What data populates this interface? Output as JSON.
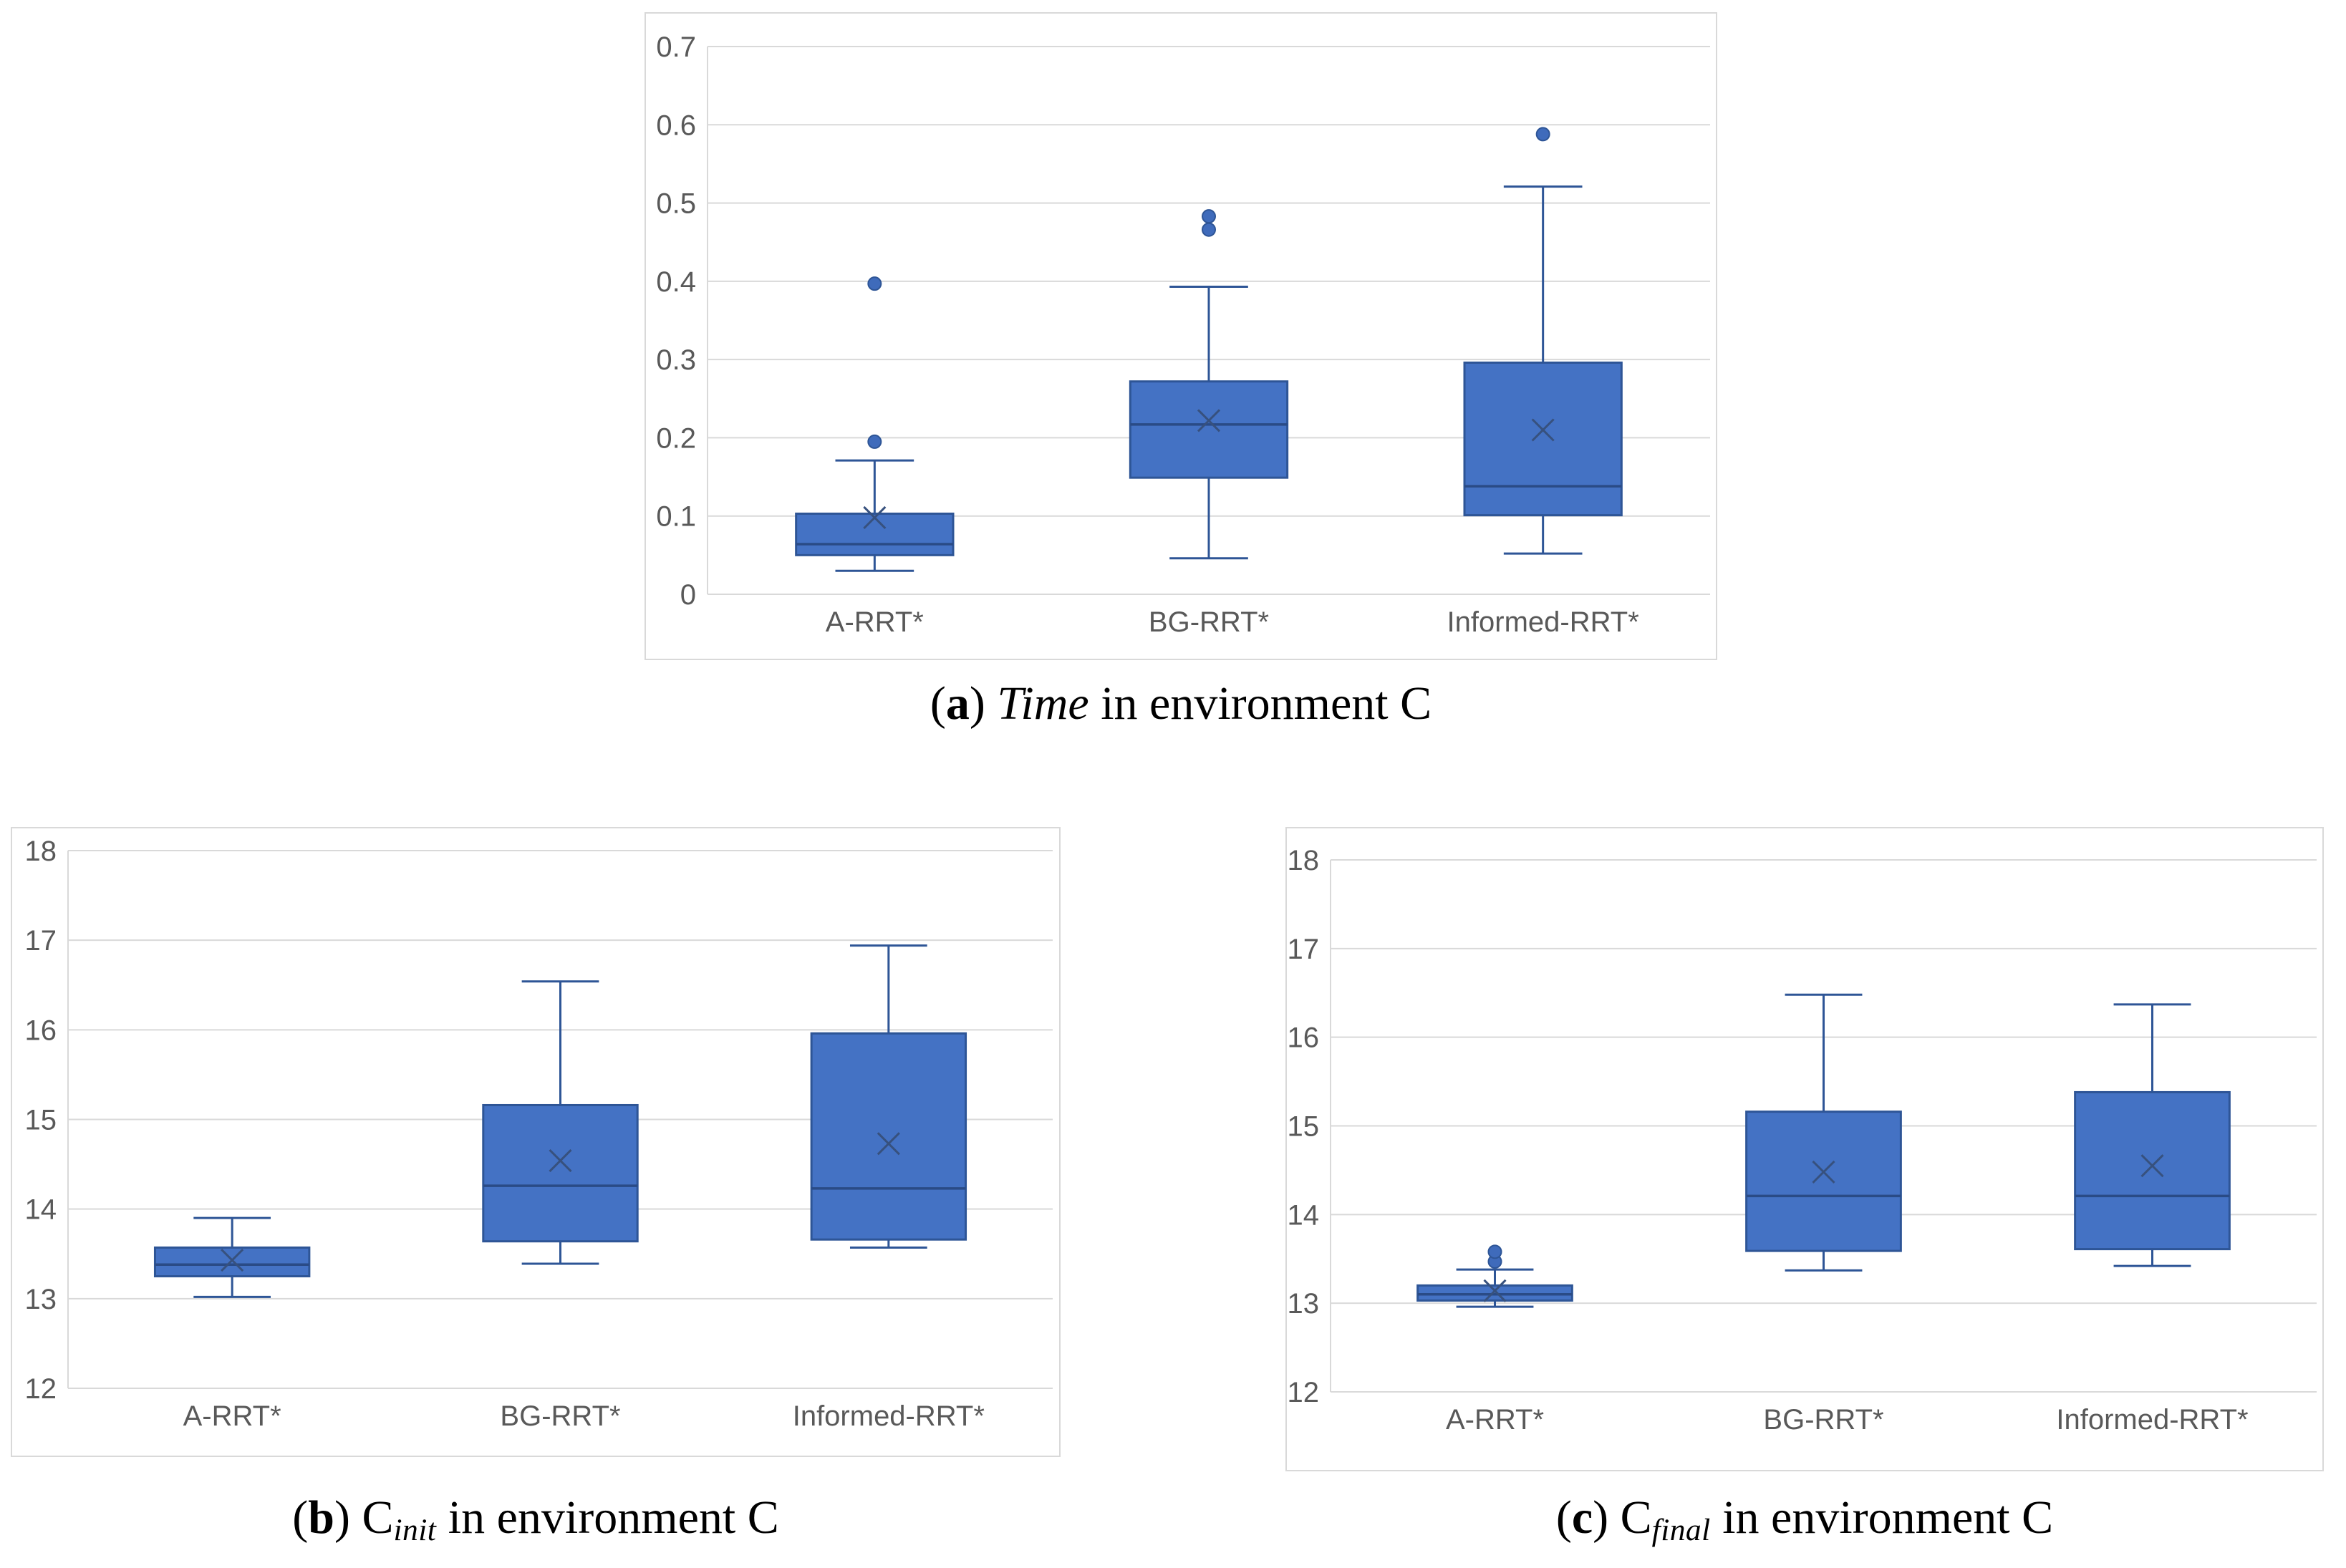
{
  "theme": {
    "box_fill": "#4472C4",
    "box_stroke": "#2E5596",
    "median_stroke": "#2A4B86",
    "whisker_stroke": "#2E5596",
    "mean_stroke": "#37517E",
    "outlier_fill": "#3F6BBB",
    "outlier_stroke": "#2E5596",
    "gridline": "#D9D9D9",
    "axis_line": "#D9D9D9",
    "frame_border": "#D9D9D9",
    "tick_label_color": "#595959",
    "background": "#ffffff"
  },
  "captions": {
    "a": {
      "open": "(",
      "letter": "a",
      "close": ") ",
      "term": "Time",
      "rest": " in environment C"
    },
    "b": {
      "open": "(",
      "letter": "b",
      "close": ") ",
      "term": "C",
      "sub": "init",
      "rest": " in environment C"
    },
    "c": {
      "open": "(",
      "letter": "c",
      "close": ") ",
      "term": "C",
      "sub": "final",
      "rest": " in environment C"
    }
  },
  "chart_data": [
    {
      "type": "box",
      "title": "(a) Time in environment C",
      "categories": [
        "A-RRT*",
        "BG-RRT*",
        "Informed-RRT*"
      ],
      "xlabel": "",
      "ylabel": "",
      "ylim": [
        0,
        0.7
      ],
      "yticks": [
        0,
        0.1,
        0.2,
        0.3,
        0.4,
        0.5,
        0.6,
        0.7
      ],
      "ytick_labels": [
        "0",
        "0.1",
        "0.2",
        "0.3",
        "0.4",
        "0.5",
        "0.6",
        "0.7"
      ],
      "grid": true,
      "legend_position": "none",
      "series": [
        {
          "category": "A-RRT*",
          "whisker_low": 0.03,
          "q1": 0.05,
          "median": 0.064,
          "q3": 0.103,
          "whisker_high": 0.171,
          "mean": 0.098,
          "outliers": [
            0.195,
            0.397
          ]
        },
        {
          "category": "BG-RRT*",
          "whisker_low": 0.046,
          "q1": 0.149,
          "median": 0.217,
          "q3": 0.272,
          "whisker_high": 0.393,
          "mean": 0.222,
          "outliers": [
            0.466,
            0.483
          ]
        },
        {
          "category": "Informed-RRT*",
          "whisker_low": 0.052,
          "q1": 0.101,
          "median": 0.138,
          "q3": 0.296,
          "whisker_high": 0.521,
          "mean": 0.21,
          "outliers": [
            0.588
          ]
        }
      ]
    },
    {
      "type": "box",
      "title": "(b) Cinit in environment C",
      "categories": [
        "A-RRT*",
        "BG-RRT*",
        "Informed-RRT*"
      ],
      "xlabel": "",
      "ylabel": "",
      "ylim": [
        12,
        18
      ],
      "yticks": [
        12,
        13,
        14,
        15,
        16,
        17,
        18
      ],
      "ytick_labels": [
        "12",
        "13",
        "14",
        "15",
        "16",
        "17",
        "18"
      ],
      "grid": true,
      "legend_position": "none",
      "series": [
        {
          "category": "A-RRT*",
          "whisker_low": 13.02,
          "q1": 13.25,
          "median": 13.38,
          "q3": 13.57,
          "whisker_high": 13.9,
          "mean": 13.43,
          "outliers": []
        },
        {
          "category": "BG-RRT*",
          "whisker_low": 13.39,
          "q1": 13.64,
          "median": 14.26,
          "q3": 15.16,
          "whisker_high": 16.54,
          "mean": 14.54,
          "outliers": []
        },
        {
          "category": "Informed-RRT*",
          "whisker_low": 13.57,
          "q1": 13.66,
          "median": 14.23,
          "q3": 15.96,
          "whisker_high": 16.94,
          "mean": 14.73,
          "outliers": []
        }
      ]
    },
    {
      "type": "box",
      "title": "(c) Cfinal in environment C",
      "categories": [
        "A-RRT*",
        "BG-RRT*",
        "Informed-RRT*"
      ],
      "xlabel": "",
      "ylabel": "",
      "ylim": [
        12,
        18
      ],
      "yticks": [
        12,
        13,
        14,
        15,
        16,
        17,
        18
      ],
      "ytick_labels": [
        "12",
        "13",
        "14",
        "15",
        "16",
        "17",
        "18"
      ],
      "grid": true,
      "legend_position": "none",
      "series": [
        {
          "category": "A-RRT*",
          "whisker_low": 12.96,
          "q1": 13.03,
          "median": 13.1,
          "q3": 13.2,
          "whisker_high": 13.38,
          "mean": 13.14,
          "outliers": [
            13.47,
            13.58
          ]
        },
        {
          "category": "BG-RRT*",
          "whisker_low": 13.37,
          "q1": 13.59,
          "median": 14.21,
          "q3": 15.16,
          "whisker_high": 16.48,
          "mean": 14.48,
          "outliers": []
        },
        {
          "category": "Informed-RRT*",
          "whisker_low": 13.42,
          "q1": 13.61,
          "median": 14.21,
          "q3": 15.38,
          "whisker_high": 16.37,
          "mean": 14.55,
          "outliers": []
        }
      ]
    }
  ]
}
